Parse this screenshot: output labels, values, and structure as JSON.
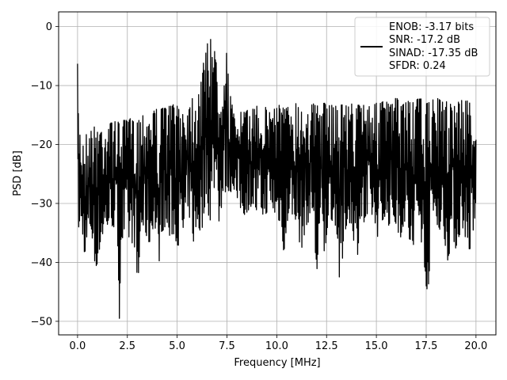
{
  "chart_data": {
    "type": "line",
    "title": "",
    "xlabel": "Frequency [MHz]",
    "ylabel": "PSD [dB]",
    "xlim": [
      -0.95,
      21.0
    ],
    "ylim": [
      -52.3,
      2.5
    ],
    "xticks": [
      0.0,
      2.5,
      5.0,
      7.5,
      10.0,
      12.5,
      15.0,
      17.5,
      20.0
    ],
    "xtick_labels": [
      "0.0",
      "2.5",
      "5.0",
      "7.5",
      "10.0",
      "12.5",
      "15.0",
      "17.5",
      "20.0"
    ],
    "yticks": [
      0,
      -10,
      -20,
      -30,
      -40,
      -50
    ],
    "ytick_labels": [
      "0",
      "−10",
      "−20",
      "−30",
      "−40",
      "−50"
    ],
    "grid": true,
    "line_color": "#000000",
    "grid_color": "#b0b0b0",
    "legend": {
      "placement": "top-right",
      "entries": [
        "ENOB: -3.17 bits",
        "SNR: -17.2 dB",
        "SINAD: -17.35 dB",
        "SFDR: 0.24"
      ]
    },
    "series": [
      {
        "x": [
          0.0,
          0.05,
          0.1,
          0.15,
          0.2,
          0.3,
          0.4,
          0.5,
          0.6,
          0.7,
          0.8,
          0.9,
          1.0,
          1.2,
          1.4,
          1.6,
          1.8,
          2.0,
          2.1,
          2.2,
          2.4,
          2.6,
          2.8,
          2.95,
          3.0,
          3.2,
          3.4,
          3.6,
          3.8,
          3.95,
          4.0,
          4.2,
          4.4,
          4.6,
          4.8,
          5.0,
          5.2,
          5.4,
          5.6,
          5.8,
          5.9,
          6.0,
          6.2,
          6.4,
          6.5,
          6.6,
          6.7,
          6.75,
          6.8,
          6.9,
          7.0,
          7.05,
          7.1,
          7.2,
          7.3,
          7.4,
          7.5,
          7.6,
          7.7,
          7.8,
          7.9,
          8.0,
          8.2,
          8.4,
          8.6,
          8.8,
          9.0,
          9.2,
          9.4,
          9.6,
          9.8,
          10.0,
          10.2,
          10.4,
          10.6,
          10.8,
          11.0,
          11.2,
          11.4,
          11.6,
          11.8,
          12.0,
          12.2,
          12.4,
          12.6,
          12.8,
          13.0,
          13.2,
          13.4,
          13.6,
          13.8,
          14.0,
          14.2,
          14.4,
          14.6,
          14.8,
          15.0,
          15.2,
          15.4,
          15.6,
          15.8,
          16.0,
          16.2,
          16.4,
          16.6,
          16.8,
          17.0,
          17.2,
          17.4,
          17.6,
          17.8,
          18.0,
          18.2,
          18.4,
          18.6,
          18.8,
          19.0,
          19.2,
          19.4,
          19.6,
          19.8,
          20.0
        ],
        "y_max": [
          -6.3,
          -16,
          -17,
          -18.5,
          -20,
          -19,
          -18,
          -18.5,
          -18,
          -17.5,
          -17,
          -17,
          -16.5,
          -17,
          -17,
          -16.5,
          -16,
          -16,
          -16.5,
          -15.5,
          -16,
          -15.5,
          -16,
          -16,
          -15.5,
          -15,
          -14.5,
          -14.5,
          -14,
          -14,
          -14,
          -14,
          -13.5,
          -13.5,
          -13,
          -13.5,
          -13.5,
          -14,
          -13,
          -11.5,
          -10.5,
          -11,
          -8,
          -5,
          -3,
          -1,
          -0.5,
          0,
          -1,
          -5,
          -6,
          -9,
          -10,
          -6,
          -4,
          -2,
          -5,
          -10,
          -12,
          -14,
          -16,
          -14.5,
          -14.5,
          -14.5,
          -14,
          -14,
          -13,
          -14,
          -13.5,
          -14.5,
          -13.5,
          -13,
          -13,
          -14,
          -13.5,
          -13,
          -13,
          -13.5,
          -13.5,
          -13,
          -13,
          -13.5,
          -13,
          -13,
          -13.5,
          -13,
          -13.5,
          -13,
          -13,
          -13.5,
          -13,
          -13,
          -13.5,
          -13,
          -13,
          -13.5,
          -13,
          -13,
          -12.5,
          -13,
          -13,
          -12,
          -13,
          -13,
          -12.5,
          -13,
          -12.5,
          -12,
          -13,
          -13,
          -12.5,
          -12,
          -12.5,
          -13,
          -12.5,
          -12.5,
          -13,
          -12.5,
          -12.5,
          -12.5,
          -13.5,
          -16
        ],
        "y_min": [
          -32,
          -34,
          -35.5,
          -33,
          -35,
          -36,
          -41.5,
          -36,
          -34,
          -35,
          -39,
          -41.5,
          -40,
          -36,
          -34.5,
          -33.5,
          -34,
          -35,
          -49.5,
          -36,
          -37,
          -36,
          -37,
          -38,
          -48,
          -34,
          -35,
          -37,
          -34,
          -35,
          -44.5,
          -35,
          -34,
          -36,
          -35,
          -37,
          -37.5,
          -34,
          -32,
          -36,
          -38.5,
          -33,
          -36,
          -30,
          -28,
          -33,
          -33,
          -30,
          -28,
          -27,
          -24,
          -27,
          -33,
          -31,
          -30,
          -29,
          -26,
          -29,
          -28,
          -27,
          -28,
          -30,
          -31,
          -32,
          -31,
          -30,
          -32,
          -31,
          -33,
          -30,
          -31,
          -33,
          -33,
          -40,
          -31,
          -32,
          -33,
          -38.5,
          -35,
          -33,
          -31,
          -43,
          -34,
          -39.5,
          -32,
          -33,
          -34,
          -46.5,
          -35,
          -33,
          -34,
          -41.5,
          -32,
          -34,
          -33,
          -32,
          -35,
          -37,
          -32,
          -34,
          -32,
          -34,
          -36,
          -33,
          -35,
          -41,
          -32,
          -34,
          -42.5,
          -45.5,
          -32,
          -33,
          -35,
          -36,
          -40,
          -35,
          -38,
          -35,
          -34,
          -39.5,
          -36,
          -34.5
        ]
      }
    ]
  }
}
